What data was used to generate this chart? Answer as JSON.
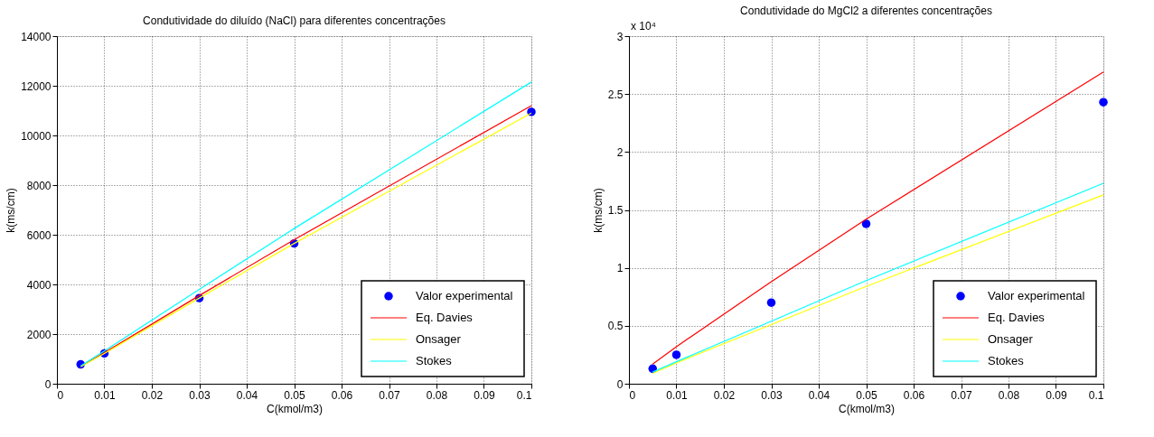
{
  "chart_data": [
    {
      "type": "line",
      "title": "Condutividade do diluído (NaCl) para diferentes concentrações",
      "xlabel": "C(kmol/m3)",
      "ylabel": "k(ms/cm)",
      "x": [
        0.005,
        0.01,
        0.03,
        0.05,
        0.1
      ],
      "xlim": [
        0,
        0.1
      ],
      "xticks": [
        0,
        0.01,
        0.02,
        0.03,
        0.04,
        0.05,
        0.06,
        0.07,
        0.08,
        0.09,
        0.1
      ],
      "ylim": [
        0,
        14000
      ],
      "yticks": [
        0,
        2000,
        4000,
        6000,
        8000,
        10000,
        12000,
        14000
      ],
      "grid": true,
      "legend": "bottom right",
      "series": [
        {
          "name": "Valor experimental",
          "type": "scatter",
          "marker": "circle",
          "color": "#0000ff",
          "values": [
            780,
            1220,
            3450,
            5650,
            10950
          ]
        },
        {
          "name": "Eq. Davies",
          "type": "line",
          "color": "#ff0000",
          "values": [
            700,
            1250,
            3550,
            5800,
            11200
          ]
        },
        {
          "name": "Onsager",
          "type": "line",
          "color": "#ffff00",
          "values": [
            680,
            1220,
            3450,
            5650,
            10900
          ]
        },
        {
          "name": "Stokes",
          "type": "line",
          "color": "#00ffff",
          "values": [
            720,
            1320,
            3800,
            6250,
            12150
          ]
        }
      ]
    },
    {
      "type": "line",
      "title": "Condutividade do MgCl2 a diferentes concentrações",
      "xlabel": "C(kmol/m3)",
      "ylabel": "k(ms/cm)",
      "annotations": [
        "x 10⁴"
      ],
      "x": [
        0.005,
        0.01,
        0.03,
        0.05,
        0.1
      ],
      "xlim": [
        0,
        0.1
      ],
      "xticks": [
        0,
        0.01,
        0.02,
        0.03,
        0.04,
        0.05,
        0.06,
        0.07,
        0.08,
        0.09,
        0.1
      ],
      "ylim": [
        0,
        3
      ],
      "yticks": [
        0,
        0.5,
        1,
        1.5,
        2,
        2.5,
        3
      ],
      "grid": true,
      "legend": "bottom right",
      "series": [
        {
          "name": "Valor experimental",
          "type": "scatter",
          "marker": "circle",
          "color": "#0000ff",
          "values": [
            0.13,
            0.25,
            0.7,
            1.38,
            2.43
          ]
        },
        {
          "name": "Eq. Davies",
          "type": "line",
          "color": "#ff0000",
          "values": [
            0.17,
            0.32,
            0.88,
            1.42,
            2.69
          ]
        },
        {
          "name": "Onsager",
          "type": "line",
          "color": "#ffff00",
          "values": [
            0.09,
            0.18,
            0.51,
            0.84,
            1.63
          ]
        },
        {
          "name": "Stokes",
          "type": "line",
          "color": "#00ffff",
          "values": [
            0.1,
            0.19,
            0.54,
            0.89,
            1.73
          ]
        }
      ]
    }
  ]
}
